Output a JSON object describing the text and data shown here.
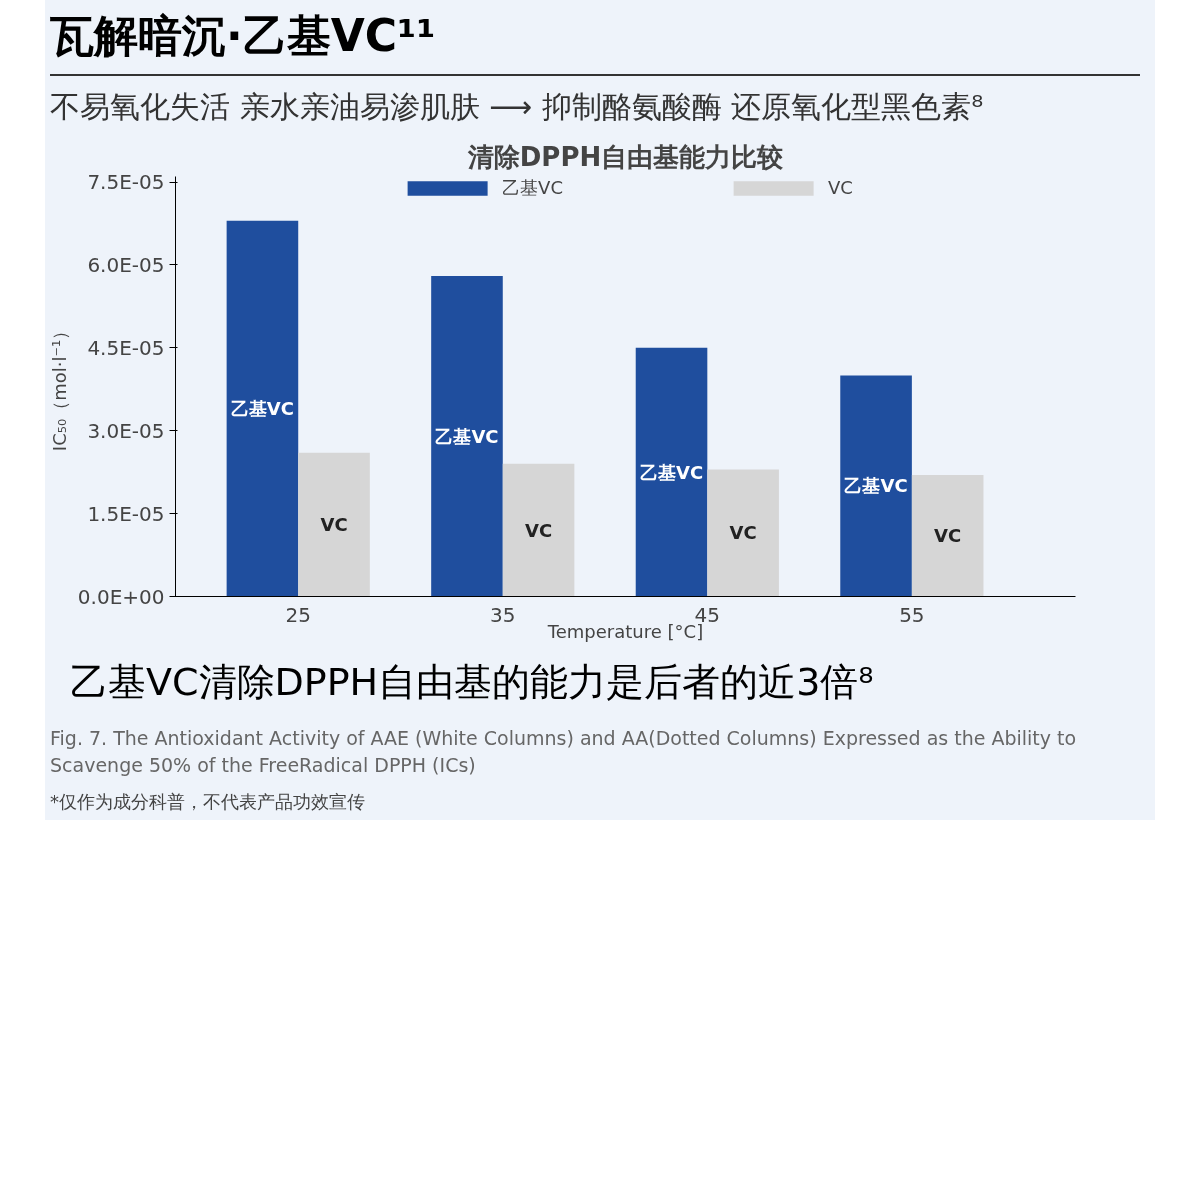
{
  "chart_data": {
    "type": "bar",
    "title": "清除DPPH自由基能力比较",
    "categories": [
      "25",
      "35",
      "45",
      "55"
    ],
    "series": [
      {
        "name": "乙基VC",
        "color": "#1f4e9e",
        "values": [
          6.8e-05,
          5.8e-05,
          4.5e-05,
          4e-05
        ]
      },
      {
        "name": "VC",
        "color": "#d6d6d6",
        "values": [
          2.6e-05,
          2.4e-05,
          2.3e-05,
          2.2e-05
        ]
      }
    ],
    "xlabel": "Temperature [°C]",
    "ylabel": "IC₅₀（mol·l⁻¹）",
    "ylim": [
      0,
      7.6e-05
    ],
    "yticks": [
      {
        "value": 0,
        "label": "0.0E+00"
      },
      {
        "value": 1.5e-05,
        "label": "1.5E-05"
      },
      {
        "value": 3e-05,
        "label": "3.0E-05"
      },
      {
        "value": 4.5e-05,
        "label": "4.5E-05"
      },
      {
        "value": 6e-05,
        "label": "6.0E-05"
      },
      {
        "value": 7.5e-05,
        "label": "7.5E-05"
      }
    ],
    "legend": "top",
    "annotations": [
      "瓦解暗沉·乙基VC¹¹",
      "不易氧化失活 亲水亲油易渗肌肤 ⟶ 抑制酪氨酸酶 还原氧化型黑色素⁸",
      "乙基VC清除DPPH自由基的能力是后者的近3倍⁸",
      "Fig. 7. The Antioxidant Activity of AAE (White Columns) and AA(Dotted Columns) Expressed as the Ability to Scavenge 50% of the FreeRadical DPPH (ICs)",
      "*仅作为成分科普，不代表产品功效宣传"
    ]
  }
}
